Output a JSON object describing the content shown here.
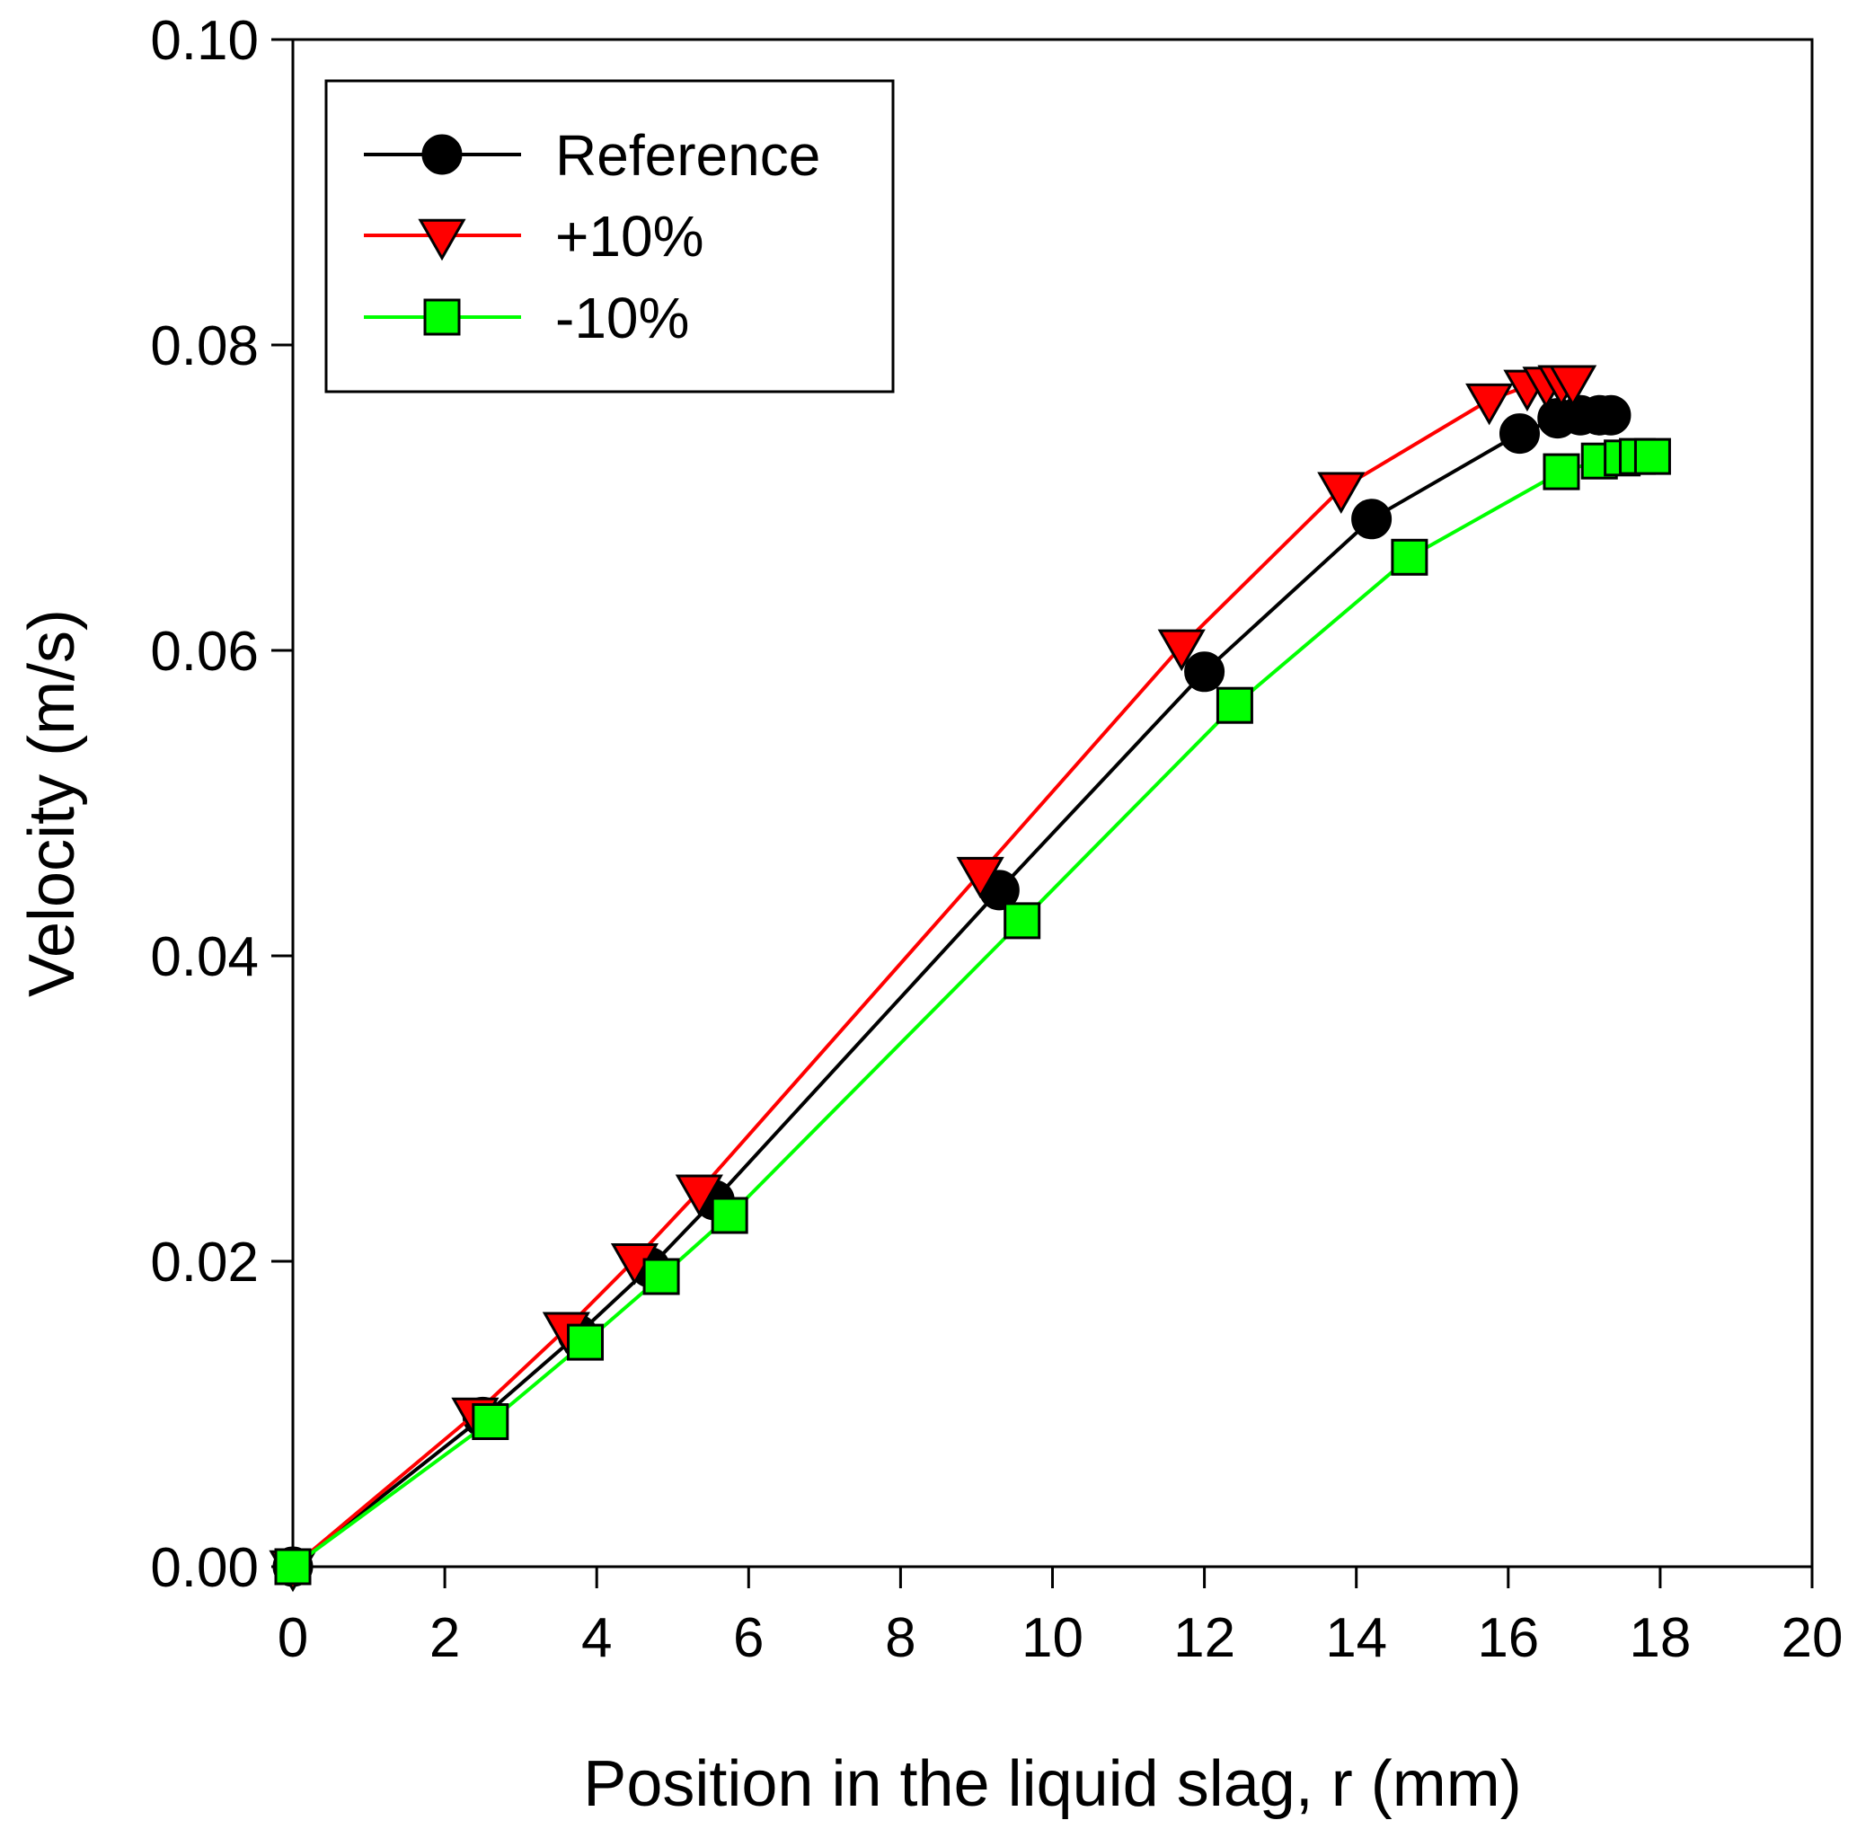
{
  "chart_data": {
    "type": "line",
    "title": "",
    "xlabel": "Position in the liquid slag, r (mm)",
    "ylabel": "Velocity (m/s)",
    "xlim": [
      0,
      20
    ],
    "ylim": [
      0.0,
      0.1
    ],
    "xticks": [
      0,
      2,
      4,
      6,
      8,
      10,
      12,
      14,
      16,
      18,
      20
    ],
    "xtick_labels": [
      "0",
      "2",
      "4",
      "6",
      "8",
      "10",
      "12",
      "14",
      "16",
      "18",
      "20"
    ],
    "yticks": [
      0.0,
      0.02,
      0.04,
      0.06,
      0.08,
      0.1
    ],
    "ytick_labels": [
      "0.00",
      "0.02",
      "0.04",
      "0.06",
      "0.08",
      "0.10"
    ],
    "grid": false,
    "legend_position": "top-left",
    "series": [
      {
        "name": "Reference",
        "color": "#000000",
        "marker": "circle",
        "marker_fill": "#000000",
        "x": [
          0,
          2.5,
          3.75,
          4.7,
          5.55,
          9.3,
          12.0,
          14.2,
          16.15,
          16.65,
          16.95,
          17.2,
          17.35
        ],
        "y": [
          0.0,
          0.0098,
          0.0152,
          0.0196,
          0.024,
          0.0443,
          0.0586,
          0.0686,
          0.0742,
          0.0752,
          0.0754,
          0.0754,
          0.0754
        ]
      },
      {
        "name": "+10%",
        "color": "#ff0000",
        "marker": "triangle-down",
        "marker_fill": "#ff0000",
        "x": [
          0,
          2.4,
          3.6,
          4.5,
          5.35,
          9.05,
          11.7,
          13.8,
          15.75,
          16.25,
          16.5,
          16.7,
          16.85
        ],
        "y": [
          0.0,
          0.01,
          0.0156,
          0.0201,
          0.0246,
          0.0454,
          0.0603,
          0.0706,
          0.0764,
          0.0773,
          0.0775,
          0.0776,
          0.0776
        ]
      },
      {
        "name": "-10%",
        "color": "#00ff00",
        "marker": "square",
        "marker_fill": "#00ff00",
        "x": [
          0,
          2.6,
          3.85,
          4.85,
          5.75,
          9.6,
          12.4,
          14.7,
          16.7,
          17.2,
          17.5,
          17.7,
          17.9
        ],
        "y": [
          0.0,
          0.0095,
          0.0147,
          0.019,
          0.023,
          0.0423,
          0.0564,
          0.0661,
          0.0717,
          0.0724,
          0.0726,
          0.0727,
          0.0727
        ]
      }
    ]
  }
}
